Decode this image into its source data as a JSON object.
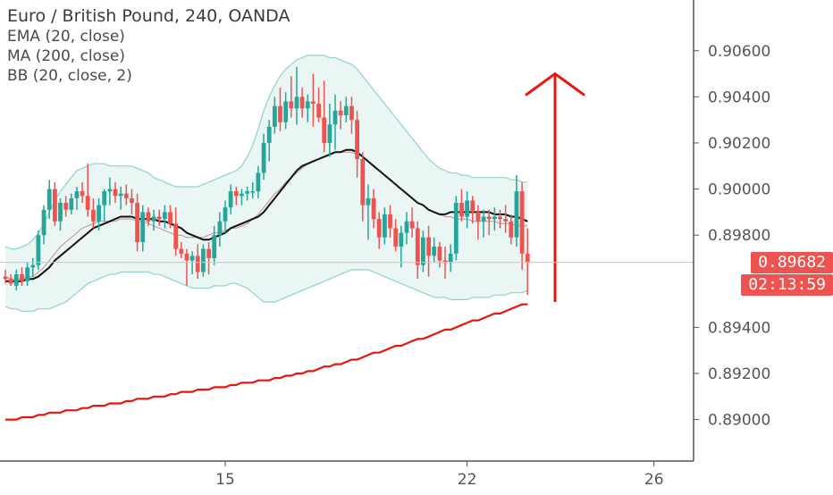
{
  "legend": {
    "title": "Euro / British Pound, 240, OANDA",
    "ema": "EMA (20, close)",
    "ma": "MA (200, close)",
    "bb": "BB (20, close, 2)"
  },
  "price_tag": "0.89682",
  "countdown_tag": "02:13:59",
  "colors": {
    "up": "#26a69a",
    "down": "#ef5350",
    "ema": "#111111",
    "ma": "#e8150d",
    "bb_band": "#8fd3cc",
    "bb_fill": "#e9f6f4",
    "bb_basis": "#c98a8a",
    "arrow": "#e8150d"
  },
  "chart_data": {
    "type": "candlestick",
    "title": "Euro / British Pound, 240, OANDA",
    "x_ticks": [
      "15",
      "22",
      "26"
    ],
    "y_ticks": [
      "0.90600",
      "0.90400",
      "0.90200",
      "0.90000",
      "0.89800",
      "0.89400",
      "0.89200",
      "0.89000"
    ],
    "ylim": [
      0.8882,
      0.9082
    ],
    "last_price": 0.89682,
    "candles": [
      [
        0.8962,
        0.8965,
        0.8959,
        0.8961
      ],
      [
        0.8961,
        0.8963,
        0.8958,
        0.8959
      ],
      [
        0.8958,
        0.8965,
        0.8956,
        0.8963
      ],
      [
        0.8963,
        0.8966,
        0.8958,
        0.896
      ],
      [
        0.896,
        0.8968,
        0.8958,
        0.8966
      ],
      [
        0.8966,
        0.897,
        0.8962,
        0.8967
      ],
      [
        0.8967,
        0.8982,
        0.8965,
        0.898
      ],
      [
        0.898,
        0.8993,
        0.8976,
        0.8991
      ],
      [
        0.8991,
        0.9004,
        0.8987,
        0.9
      ],
      [
        0.9,
        0.9003,
        0.8984,
        0.8986
      ],
      [
        0.8986,
        0.8996,
        0.8982,
        0.8994
      ],
      [
        0.8994,
        0.8997,
        0.8988,
        0.8991
      ],
      [
        0.8991,
        0.8998,
        0.8989,
        0.8996
      ],
      [
        0.8996,
        0.9001,
        0.8991,
        0.8999
      ],
      [
        0.8999,
        0.9003,
        0.8994,
        0.8997
      ],
      [
        0.8997,
        0.9011,
        0.8988,
        0.8991
      ],
      [
        0.8991,
        0.8996,
        0.8983,
        0.8986
      ],
      [
        0.8986,
        0.8996,
        0.8982,
        0.8993
      ],
      [
        0.8993,
        0.9,
        0.8986,
        0.8999
      ],
      [
        0.8999,
        0.9005,
        0.8993,
        0.9
      ],
      [
        0.9,
        0.9003,
        0.8994,
        0.8997
      ],
      [
        0.8997,
        0.9001,
        0.8991,
        0.8998
      ],
      [
        0.8998,
        0.9002,
        0.8993,
        0.8996
      ],
      [
        0.8996,
        0.9,
        0.8989,
        0.8994
      ],
      [
        0.8994,
        0.8998,
        0.8973,
        0.8977
      ],
      [
        0.8977,
        0.8993,
        0.8973,
        0.899
      ],
      [
        0.899,
        0.8992,
        0.8984,
        0.8986
      ],
      [
        0.8986,
        0.8991,
        0.8982,
        0.8988
      ],
      [
        0.8988,
        0.8991,
        0.8984,
        0.8987
      ],
      [
        0.8987,
        0.8993,
        0.8983,
        0.899
      ],
      [
        0.899,
        0.8993,
        0.8983,
        0.8985
      ],
      [
        0.8985,
        0.8992,
        0.8971,
        0.8974
      ],
      [
        0.8974,
        0.8977,
        0.897,
        0.8972
      ],
      [
        0.8972,
        0.8974,
        0.8958,
        0.8969
      ],
      [
        0.8969,
        0.8973,
        0.8963,
        0.8971
      ],
      [
        0.8971,
        0.8976,
        0.8961,
        0.8964
      ],
      [
        0.8964,
        0.8976,
        0.8962,
        0.8974
      ],
      [
        0.8974,
        0.8977,
        0.8963,
        0.897
      ],
      [
        0.897,
        0.8984,
        0.8967,
        0.898
      ],
      [
        0.898,
        0.899,
        0.8975,
        0.8986
      ],
      [
        0.8986,
        0.8995,
        0.8981,
        0.8992
      ],
      [
        0.8992,
        0.9002,
        0.8989,
        0.8999
      ],
      [
        0.8999,
        0.9001,
        0.8993,
        0.8997
      ],
      [
        0.8997,
        0.9,
        0.8993,
        0.8998
      ],
      [
        0.8998,
        0.9001,
        0.8995,
        0.8999
      ],
      [
        0.8999,
        0.9003,
        0.8996,
        0.8999
      ],
      [
        0.8999,
        0.901,
        0.8996,
        0.9007
      ],
      [
        0.9007,
        0.9024,
        0.9004,
        0.902
      ],
      [
        0.902,
        0.903,
        0.9012,
        0.9027
      ],
      [
        0.9027,
        0.904,
        0.9024,
        0.9036
      ],
      [
        0.9036,
        0.9044,
        0.9025,
        0.9029
      ],
      [
        0.9029,
        0.9042,
        0.9026,
        0.9038
      ],
      [
        0.9038,
        0.9049,
        0.9031,
        0.9035
      ],
      [
        0.9035,
        0.9053,
        0.9028,
        0.904
      ],
      [
        0.904,
        0.9044,
        0.9031,
        0.9035
      ],
      [
        0.9035,
        0.9041,
        0.9029,
        0.9038
      ],
      [
        0.9038,
        0.905,
        0.9027,
        0.9037
      ],
      [
        0.9037,
        0.9044,
        0.9029,
        0.9031
      ],
      [
        0.9031,
        0.9047,
        0.9016,
        0.902
      ],
      [
        0.902,
        0.9037,
        0.9014,
        0.9028
      ],
      [
        0.9028,
        0.9041,
        0.9017,
        0.9034
      ],
      [
        0.9034,
        0.9038,
        0.9026,
        0.9032
      ],
      [
        0.9032,
        0.904,
        0.9029,
        0.9036
      ],
      [
        0.9036,
        0.904,
        0.9024,
        0.903
      ],
      [
        0.903,
        0.9034,
        0.9005,
        0.9013
      ],
      [
        0.9013,
        0.9016,
        0.8986,
        0.8993
      ],
      [
        0.8993,
        0.9002,
        0.8978,
        0.8996
      ],
      [
        0.8996,
        0.9,
        0.8983,
        0.8987
      ],
      [
        0.8987,
        0.899,
        0.8974,
        0.8979
      ],
      [
        0.8979,
        0.8992,
        0.8976,
        0.8989
      ],
      [
        0.8989,
        0.8993,
        0.8979,
        0.8983
      ],
      [
        0.8983,
        0.8987,
        0.8973,
        0.8975
      ],
      [
        0.8975,
        0.8984,
        0.8966,
        0.8981
      ],
      [
        0.8981,
        0.899,
        0.8976,
        0.8986
      ],
      [
        0.8986,
        0.8992,
        0.8979,
        0.8983
      ],
      [
        0.8983,
        0.8986,
        0.8961,
        0.8967
      ],
      [
        0.8967,
        0.8982,
        0.8964,
        0.8979
      ],
      [
        0.8979,
        0.8984,
        0.8962,
        0.8971
      ],
      [
        0.8971,
        0.8979,
        0.8968,
        0.8975
      ],
      [
        0.8975,
        0.8977,
        0.8966,
        0.8969
      ],
      [
        0.8969,
        0.8975,
        0.8961,
        0.8968
      ],
      [
        0.8968,
        0.8976,
        0.8964,
        0.8972
      ],
      [
        0.8972,
        0.8997,
        0.8969,
        0.8994
      ],
      [
        0.8994,
        0.9,
        0.8986,
        0.8988
      ],
      [
        0.8988,
        0.8999,
        0.8983,
        0.8995
      ],
      [
        0.8995,
        0.8997,
        0.8985,
        0.899
      ],
      [
        0.899,
        0.8993,
        0.8978,
        0.8986
      ],
      [
        0.8986,
        0.8991,
        0.8979,
        0.8988
      ],
      [
        0.8988,
        0.8991,
        0.898,
        0.8987
      ],
      [
        0.8987,
        0.8992,
        0.8982,
        0.8988
      ],
      [
        0.8988,
        0.8991,
        0.8983,
        0.8987
      ],
      [
        0.8987,
        0.8993,
        0.8981,
        0.8986
      ],
      [
        0.8986,
        0.8989,
        0.8976,
        0.8979
      ],
      [
        0.8979,
        0.9006,
        0.8975,
        0.8999
      ],
      [
        0.8999,
        0.9003,
        0.8965,
        0.8972
      ],
      [
        0.8972,
        0.8983,
        0.8954,
        0.8968
      ]
    ],
    "ema": [
      0.896,
      0.896,
      0.896,
      0.896,
      0.8961,
      0.8961,
      0.8962,
      0.8964,
      0.8966,
      0.8969,
      0.8971,
      0.8973,
      0.8975,
      0.8977,
      0.8979,
      0.8981,
      0.8983,
      0.8984,
      0.8985,
      0.8986,
      0.8987,
      0.8988,
      0.8988,
      0.8988,
      0.8987,
      0.8987,
      0.8987,
      0.8987,
      0.8986,
      0.8986,
      0.8985,
      0.8984,
      0.8983,
      0.8981,
      0.898,
      0.8979,
      0.8978,
      0.8978,
      0.8979,
      0.898,
      0.8981,
      0.8983,
      0.8984,
      0.8985,
      0.8986,
      0.8987,
      0.8988,
      0.899,
      0.8993,
      0.8996,
      0.8999,
      0.9002,
      0.9005,
      0.9008,
      0.901,
      0.9011,
      0.9012,
      0.9013,
      0.9014,
      0.9015,
      0.9016,
      0.9016,
      0.9017,
      0.9017,
      0.9016,
      0.9014,
      0.9012,
      0.901,
      0.9008,
      0.9006,
      0.9004,
      0.9002,
      0.9,
      0.8998,
      0.8996,
      0.8994,
      0.8993,
      0.8991,
      0.899,
      0.8989,
      0.8989,
      0.899,
      0.899,
      0.899,
      0.899,
      0.899,
      0.899,
      0.899,
      0.899,
      0.8989,
      0.8989,
      0.8989,
      0.8988,
      0.8988,
      0.8987,
      0.8986
    ],
    "ma200": [
      0.89,
      0.89,
      0.89,
      0.8901,
      0.8901,
      0.8901,
      0.8902,
      0.8902,
      0.8903,
      0.8903,
      0.8903,
      0.8904,
      0.8904,
      0.8904,
      0.8905,
      0.8905,
      0.8906,
      0.8906,
      0.8906,
      0.8907,
      0.8907,
      0.8907,
      0.8908,
      0.8908,
      0.8909,
      0.8909,
      0.8909,
      0.891,
      0.891,
      0.891,
      0.8911,
      0.8911,
      0.8912,
      0.8912,
      0.8912,
      0.8913,
      0.8913,
      0.8913,
      0.8914,
      0.8914,
      0.8914,
      0.8915,
      0.8915,
      0.8916,
      0.8916,
      0.8916,
      0.8917,
      0.8917,
      0.8917,
      0.8918,
      0.8918,
      0.8919,
      0.8919,
      0.892,
      0.892,
      0.8921,
      0.8921,
      0.8922,
      0.8923,
      0.8923,
      0.8924,
      0.8924,
      0.8925,
      0.8926,
      0.8926,
      0.8927,
      0.8928,
      0.8929,
      0.8929,
      0.893,
      0.8931,
      0.8932,
      0.8932,
      0.8933,
      0.8934,
      0.8935,
      0.8935,
      0.8936,
      0.8937,
      0.8938,
      0.8939,
      0.8939,
      0.894,
      0.8941,
      0.8942,
      0.8943,
      0.8943,
      0.8944,
      0.8945,
      0.8946,
      0.8946,
      0.8947,
      0.8948,
      0.8949,
      0.895,
      0.895
    ],
    "bb_upper": [
      0.8975,
      0.8974,
      0.8974,
      0.8975,
      0.8976,
      0.8978,
      0.8981,
      0.8985,
      0.899,
      0.8995,
      0.8999,
      0.9002,
      0.9005,
      0.9008,
      0.9009,
      0.901,
      0.9011,
      0.9011,
      0.9011,
      0.901,
      0.901,
      0.901,
      0.901,
      0.901,
      0.9009,
      0.9008,
      0.9007,
      0.9005,
      0.9004,
      0.9003,
      0.9002,
      0.9001,
      0.9001,
      0.9001,
      0.9001,
      0.9001,
      0.9002,
      0.9003,
      0.9004,
      0.9005,
      0.9006,
      0.9007,
      0.9008,
      0.901,
      0.9014,
      0.9019,
      0.9026,
      0.9034,
      0.904,
      0.9045,
      0.9049,
      0.9052,
      0.9054,
      0.9056,
      0.9057,
      0.9058,
      0.9058,
      0.9058,
      0.9058,
      0.9057,
      0.9057,
      0.9056,
      0.9055,
      0.9054,
      0.9052,
      0.9049,
      0.9046,
      0.9043,
      0.904,
      0.9037,
      0.9034,
      0.9031,
      0.9028,
      0.9025,
      0.9022,
      0.9019,
      0.9016,
      0.9013,
      0.9011,
      0.9009,
      0.9008,
      0.9007,
      0.9007,
      0.9006,
      0.9006,
      0.9005,
      0.9005,
      0.9005,
      0.9005,
      0.9005,
      0.9005,
      0.9005,
      0.9004,
      0.9004,
      0.9003,
      0.9003
    ],
    "bb_lower": [
      0.8949,
      0.8948,
      0.8948,
      0.8947,
      0.8947,
      0.8947,
      0.8948,
      0.8948,
      0.8948,
      0.8949,
      0.895,
      0.8951,
      0.8953,
      0.8955,
      0.8957,
      0.8959,
      0.896,
      0.8961,
      0.8962,
      0.8963,
      0.8963,
      0.8964,
      0.8964,
      0.8964,
      0.8964,
      0.8964,
      0.8964,
      0.8963,
      0.8963,
      0.8962,
      0.8961,
      0.896,
      0.8959,
      0.8958,
      0.8957,
      0.8957,
      0.8957,
      0.8957,
      0.8958,
      0.8958,
      0.8958,
      0.8959,
      0.8959,
      0.8958,
      0.8957,
      0.8955,
      0.8953,
      0.8951,
      0.8951,
      0.8951,
      0.8952,
      0.8953,
      0.8954,
      0.8955,
      0.8956,
      0.8957,
      0.8958,
      0.8959,
      0.896,
      0.8961,
      0.8962,
      0.8963,
      0.8964,
      0.8965,
      0.8965,
      0.8965,
      0.8965,
      0.8964,
      0.8963,
      0.8962,
      0.8961,
      0.896,
      0.8959,
      0.8958,
      0.8957,
      0.8956,
      0.8955,
      0.8954,
      0.8953,
      0.8953,
      0.8953,
      0.8952,
      0.8952,
      0.8952,
      0.8952,
      0.8953,
      0.8953,
      0.8953,
      0.8953,
      0.8954,
      0.8954,
      0.8954,
      0.8955,
      0.8955,
      0.8955,
      0.8956
    ],
    "bb_basis": [
      0.8962,
      0.8961,
      0.8961,
      0.8961,
      0.8962,
      0.8962,
      0.8964,
      0.8966,
      0.8969,
      0.8972,
      0.8975,
      0.8977,
      0.8979,
      0.8981,
      0.8983,
      0.8984,
      0.8985,
      0.8986,
      0.8986,
      0.8986,
      0.8986,
      0.8987,
      0.8987,
      0.8987,
      0.8986,
      0.8986,
      0.8985,
      0.8984,
      0.8983,
      0.8982,
      0.8981,
      0.898,
      0.898,
      0.8979,
      0.8979,
      0.8979,
      0.8979,
      0.898,
      0.8981,
      0.8981,
      0.8982,
      0.8983,
      0.8983,
      0.8984,
      0.8985,
      0.8987,
      0.8989,
      0.8992,
      0.8995,
      0.8998,
      0.9,
      0.9003,
      0.9005,
      0.9007,
      0.9009,
      0.9011,
      0.9012,
      0.9013,
      0.9014,
      0.9015,
      0.9016,
      0.9016,
      0.9016,
      0.9016,
      0.9015,
      0.9014,
      0.9012,
      0.901,
      0.9008,
      0.9006,
      0.9004,
      0.9002,
      0.9,
      0.8998,
      0.8996,
      0.8994,
      0.8993,
      0.8991,
      0.899,
      0.8989,
      0.8988,
      0.8988,
      0.8987,
      0.8987,
      0.8987,
      0.8986,
      0.8986,
      0.8986,
      0.8986,
      0.8986,
      0.8985,
      0.8985,
      0.8985,
      0.8984,
      0.8984,
      0.8984
    ],
    "arrow": {
      "x_index": 100,
      "from": 0.8951,
      "to": 0.905
    }
  }
}
